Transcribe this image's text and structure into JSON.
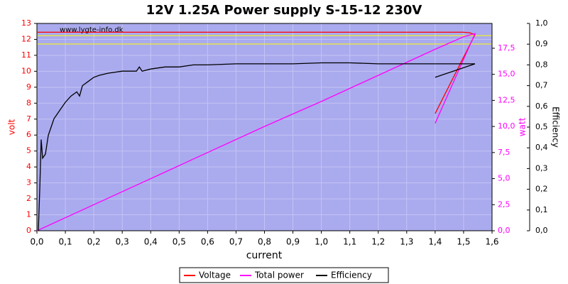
{
  "chart_data": {
    "type": "line",
    "title": "12V 1.25A Power supply S-15-12 230V",
    "watermark": "www.lygte-info.dk",
    "xlabel": "current",
    "ylabel": "volt",
    "y2label": "watt",
    "y3label": "Efficiency",
    "background": "#aaaaee",
    "grid": true,
    "xlim": [
      0,
      1.6
    ],
    "xticks": [
      {
        "value": 0,
        "label": "0,0"
      },
      {
        "value": 0.1,
        "label": "0,1"
      },
      {
        "value": 0.2,
        "label": "0,2"
      },
      {
        "value": 0.3,
        "label": "0,3"
      },
      {
        "value": 0.4,
        "label": "0,4"
      },
      {
        "value": 0.5,
        "label": "0,5"
      },
      {
        "value": 0.6,
        "label": "0,6"
      },
      {
        "value": 0.7,
        "label": "0,7"
      },
      {
        "value": 0.8,
        "label": "0,8"
      },
      {
        "value": 0.9,
        "label": "0,9"
      },
      {
        "value": 1.0,
        "label": "1,0"
      },
      {
        "value": 1.1,
        "label": "1,1"
      },
      {
        "value": 1.2,
        "label": "1,2"
      },
      {
        "value": 1.3,
        "label": "1,3"
      },
      {
        "value": 1.4,
        "label": "1,4"
      },
      {
        "value": 1.5,
        "label": "1,5"
      },
      {
        "value": 1.6,
        "label": "1,6"
      }
    ],
    "ylim": [
      0,
      13
    ],
    "yticks": [
      0,
      1,
      2,
      3,
      4,
      5,
      6,
      7,
      8,
      9,
      10,
      11,
      12,
      13
    ],
    "y2lim": [
      0,
      19.88
    ],
    "y2ticks": [
      {
        "value": 0,
        "label": "0,0"
      },
      {
        "value": 2.5,
        "label": "2,5"
      },
      {
        "value": 5,
        "label": "5,0"
      },
      {
        "value": 7.5,
        "label": "7,5"
      },
      {
        "value": 10,
        "label": "10,0"
      },
      {
        "value": 12.5,
        "label": "12,5"
      },
      {
        "value": 15,
        "label": "15,0"
      },
      {
        "value": 17.5,
        "label": "17,5"
      }
    ],
    "y3lim": [
      0,
      1.0
    ],
    "y3ticks": [
      {
        "value": 0,
        "label": "0,0"
      },
      {
        "value": 0.1,
        "label": "0,1"
      },
      {
        "value": 0.2,
        "label": "0,2"
      },
      {
        "value": 0.3,
        "label": "0,3"
      },
      {
        "value": 0.4,
        "label": "0,4"
      },
      {
        "value": 0.5,
        "label": "0,5"
      },
      {
        "value": 0.6,
        "label": "0,6"
      },
      {
        "value": 0.7,
        "label": "0,7"
      },
      {
        "value": 0.8,
        "label": "0,8"
      },
      {
        "value": 0.9,
        "label": "0,9"
      },
      {
        "value": 1.0,
        "label": "1,0"
      }
    ],
    "hlines": {
      "values": [
        12.24,
        11.71
      ],
      "color": "#ffff00"
    },
    "series": [
      {
        "name": "Voltage",
        "color": "#ff0000",
        "axis": "y",
        "x": [
          0,
          0.2,
          0.5,
          1.0,
          1.5,
          1.52,
          1.54,
          1.4
        ],
        "values": [
          12.45,
          12.45,
          12.45,
          12.45,
          12.45,
          12.42,
          12.3,
          7.35
        ]
      },
      {
        "name": "Total power",
        "color": "#ff00ff",
        "axis": "y2",
        "x": [
          0,
          0.2,
          0.4,
          0.6,
          0.8,
          1.0,
          1.2,
          1.4,
          1.5,
          1.54,
          1.4
        ],
        "values": [
          0,
          2.5,
          5.0,
          7.5,
          10.0,
          12.4,
          14.9,
          17.4,
          18.6,
          18.9,
          10.3
        ]
      },
      {
        "name": "Efficiency",
        "color": "#000000",
        "axis": "y3",
        "x": [
          0.005,
          0.01,
          0.015,
          0.02,
          0.03,
          0.04,
          0.05,
          0.06,
          0.08,
          0.1,
          0.12,
          0.14,
          0.15,
          0.16,
          0.18,
          0.2,
          0.22,
          0.25,
          0.3,
          0.35,
          0.36,
          0.37,
          0.4,
          0.45,
          0.5,
          0.55,
          0.6,
          0.7,
          0.8,
          0.9,
          1.0,
          1.1,
          1.2,
          1.3,
          1.4,
          1.5,
          1.54,
          1.4
        ],
        "values": [
          0.0,
          0.2,
          0.44,
          0.35,
          0.37,
          0.46,
          0.5,
          0.54,
          0.58,
          0.62,
          0.65,
          0.67,
          0.65,
          0.7,
          0.72,
          0.74,
          0.75,
          0.76,
          0.77,
          0.77,
          0.79,
          0.77,
          0.78,
          0.79,
          0.79,
          0.8,
          0.8,
          0.805,
          0.805,
          0.805,
          0.81,
          0.81,
          0.805,
          0.805,
          0.805,
          0.805,
          0.805,
          0.74
        ]
      }
    ]
  }
}
